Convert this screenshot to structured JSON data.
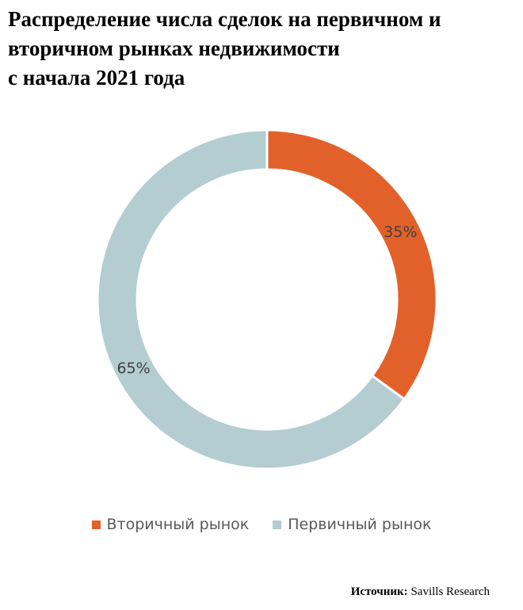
{
  "title_lines": [
    "Распределение числа сделок на первичном и",
    "вторичном рынках недвижимости",
    "с начала 2021 года"
  ],
  "source": {
    "label": "Источник:",
    "text": "Savills Research"
  },
  "colors": {
    "secondary": "#E2612A",
    "primary": "#B3CDD1",
    "label": "#404040"
  },
  "chart_data": {
    "type": "pie",
    "variant": "donut",
    "categories": [
      "Вторичный рынок",
      "Первичный рынок"
    ],
    "values": [
      35,
      65
    ],
    "labels": [
      "35%",
      "65%"
    ],
    "legend_position": "bottom"
  }
}
